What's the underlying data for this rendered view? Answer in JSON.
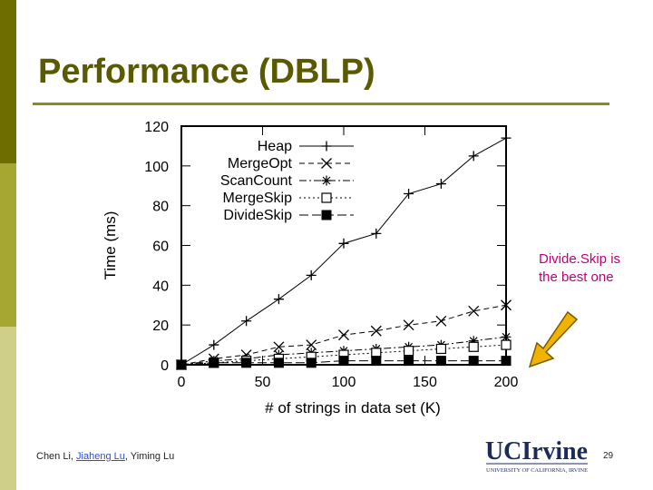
{
  "slide": {
    "title": "Performance (DBLP)",
    "callout": "Divide.Skip is the best one",
    "footer": {
      "author1": "Chen Li,",
      "author2": "Jiaheng Lu",
      "author3": ", Yiming Lu"
    },
    "logo": {
      "main": "UCIrvine",
      "sub": "UNIVERSITY OF CALIFORNIA, IRVINE"
    },
    "page_number": "29",
    "colors": {
      "title": "#5a5a00",
      "callout": "#c0007a",
      "arrow": "#f0b400",
      "logo": "#1d2b5a"
    }
  },
  "chart_data": {
    "type": "line",
    "title": "",
    "xlabel": "# of strings in data set (K)",
    "ylabel": "Time (ms)",
    "xlim": [
      0,
      200
    ],
    "ylim": [
      0,
      120
    ],
    "xticks": [
      0,
      50,
      100,
      150,
      200
    ],
    "yticks": [
      0,
      20,
      40,
      60,
      80,
      100,
      120
    ],
    "x": [
      0,
      20,
      40,
      60,
      80,
      100,
      120,
      140,
      160,
      180,
      200
    ],
    "legend_position": "top-left",
    "series": [
      {
        "name": "Heap",
        "marker": "plus",
        "dash": "solid",
        "values": [
          0,
          10,
          22,
          33,
          45,
          61,
          66,
          86,
          91,
          105,
          114
        ]
      },
      {
        "name": "MergeOpt",
        "marker": "x",
        "dash": "dashed",
        "values": [
          0,
          3,
          5,
          9,
          10,
          15,
          17,
          20,
          22,
          27,
          30
        ]
      },
      {
        "name": "ScanCount",
        "marker": "star",
        "dash": "dashdot",
        "values": [
          0,
          2,
          3,
          5,
          6,
          7,
          8,
          9,
          10,
          12,
          14
        ]
      },
      {
        "name": "MergeSkip",
        "marker": "open-square",
        "dash": "dotted",
        "values": [
          0,
          1,
          2,
          3,
          4,
          5,
          6,
          7,
          8,
          9,
          10
        ]
      },
      {
        "name": "DivideSkip",
        "marker": "filled-square",
        "dash": "longdash",
        "values": [
          0,
          1,
          1,
          1,
          1,
          2,
          2,
          2,
          2,
          2,
          2
        ]
      }
    ]
  }
}
